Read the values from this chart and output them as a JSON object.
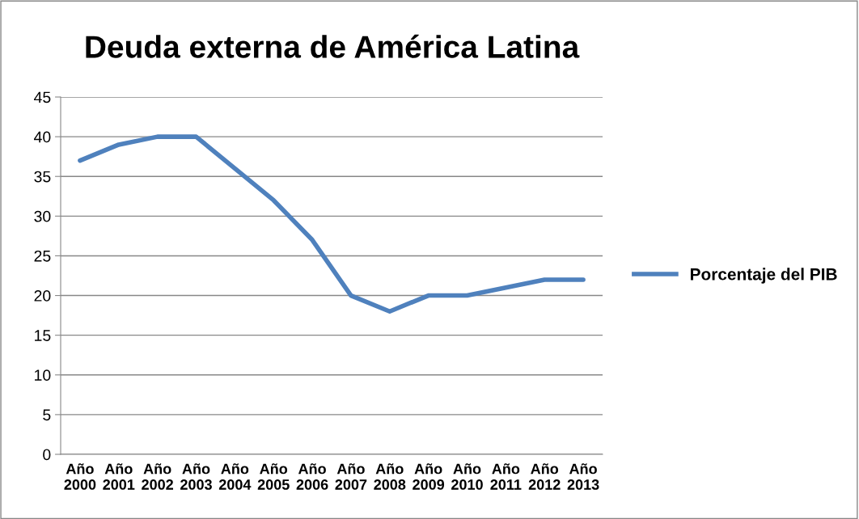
{
  "chart_data": {
    "type": "line",
    "title": "Deuda externa de América Latina",
    "categories": [
      "Año 2000",
      "Año 2001",
      "Año 2002",
      "Año 2003",
      "Año 2004",
      "Año 2005",
      "Año 2006",
      "Año 2007",
      "Año 2008",
      "Año 2009",
      "Año 2010",
      "Año 2011",
      "Año 2012",
      "Año 2013"
    ],
    "series": [
      {
        "name": "Porcentaje del PIB",
        "color": "#4f81bd",
        "values": [
          37,
          39,
          40,
          40,
          36,
          32,
          27,
          20,
          18,
          20,
          20,
          21,
          22,
          22
        ]
      }
    ],
    "ylim": [
      0,
      45
    ],
    "yticks": [
      0,
      5,
      10,
      15,
      20,
      25,
      30,
      35,
      40,
      45
    ],
    "grid": "y",
    "legend": "right",
    "marker": "none",
    "line_style": "solid"
  }
}
